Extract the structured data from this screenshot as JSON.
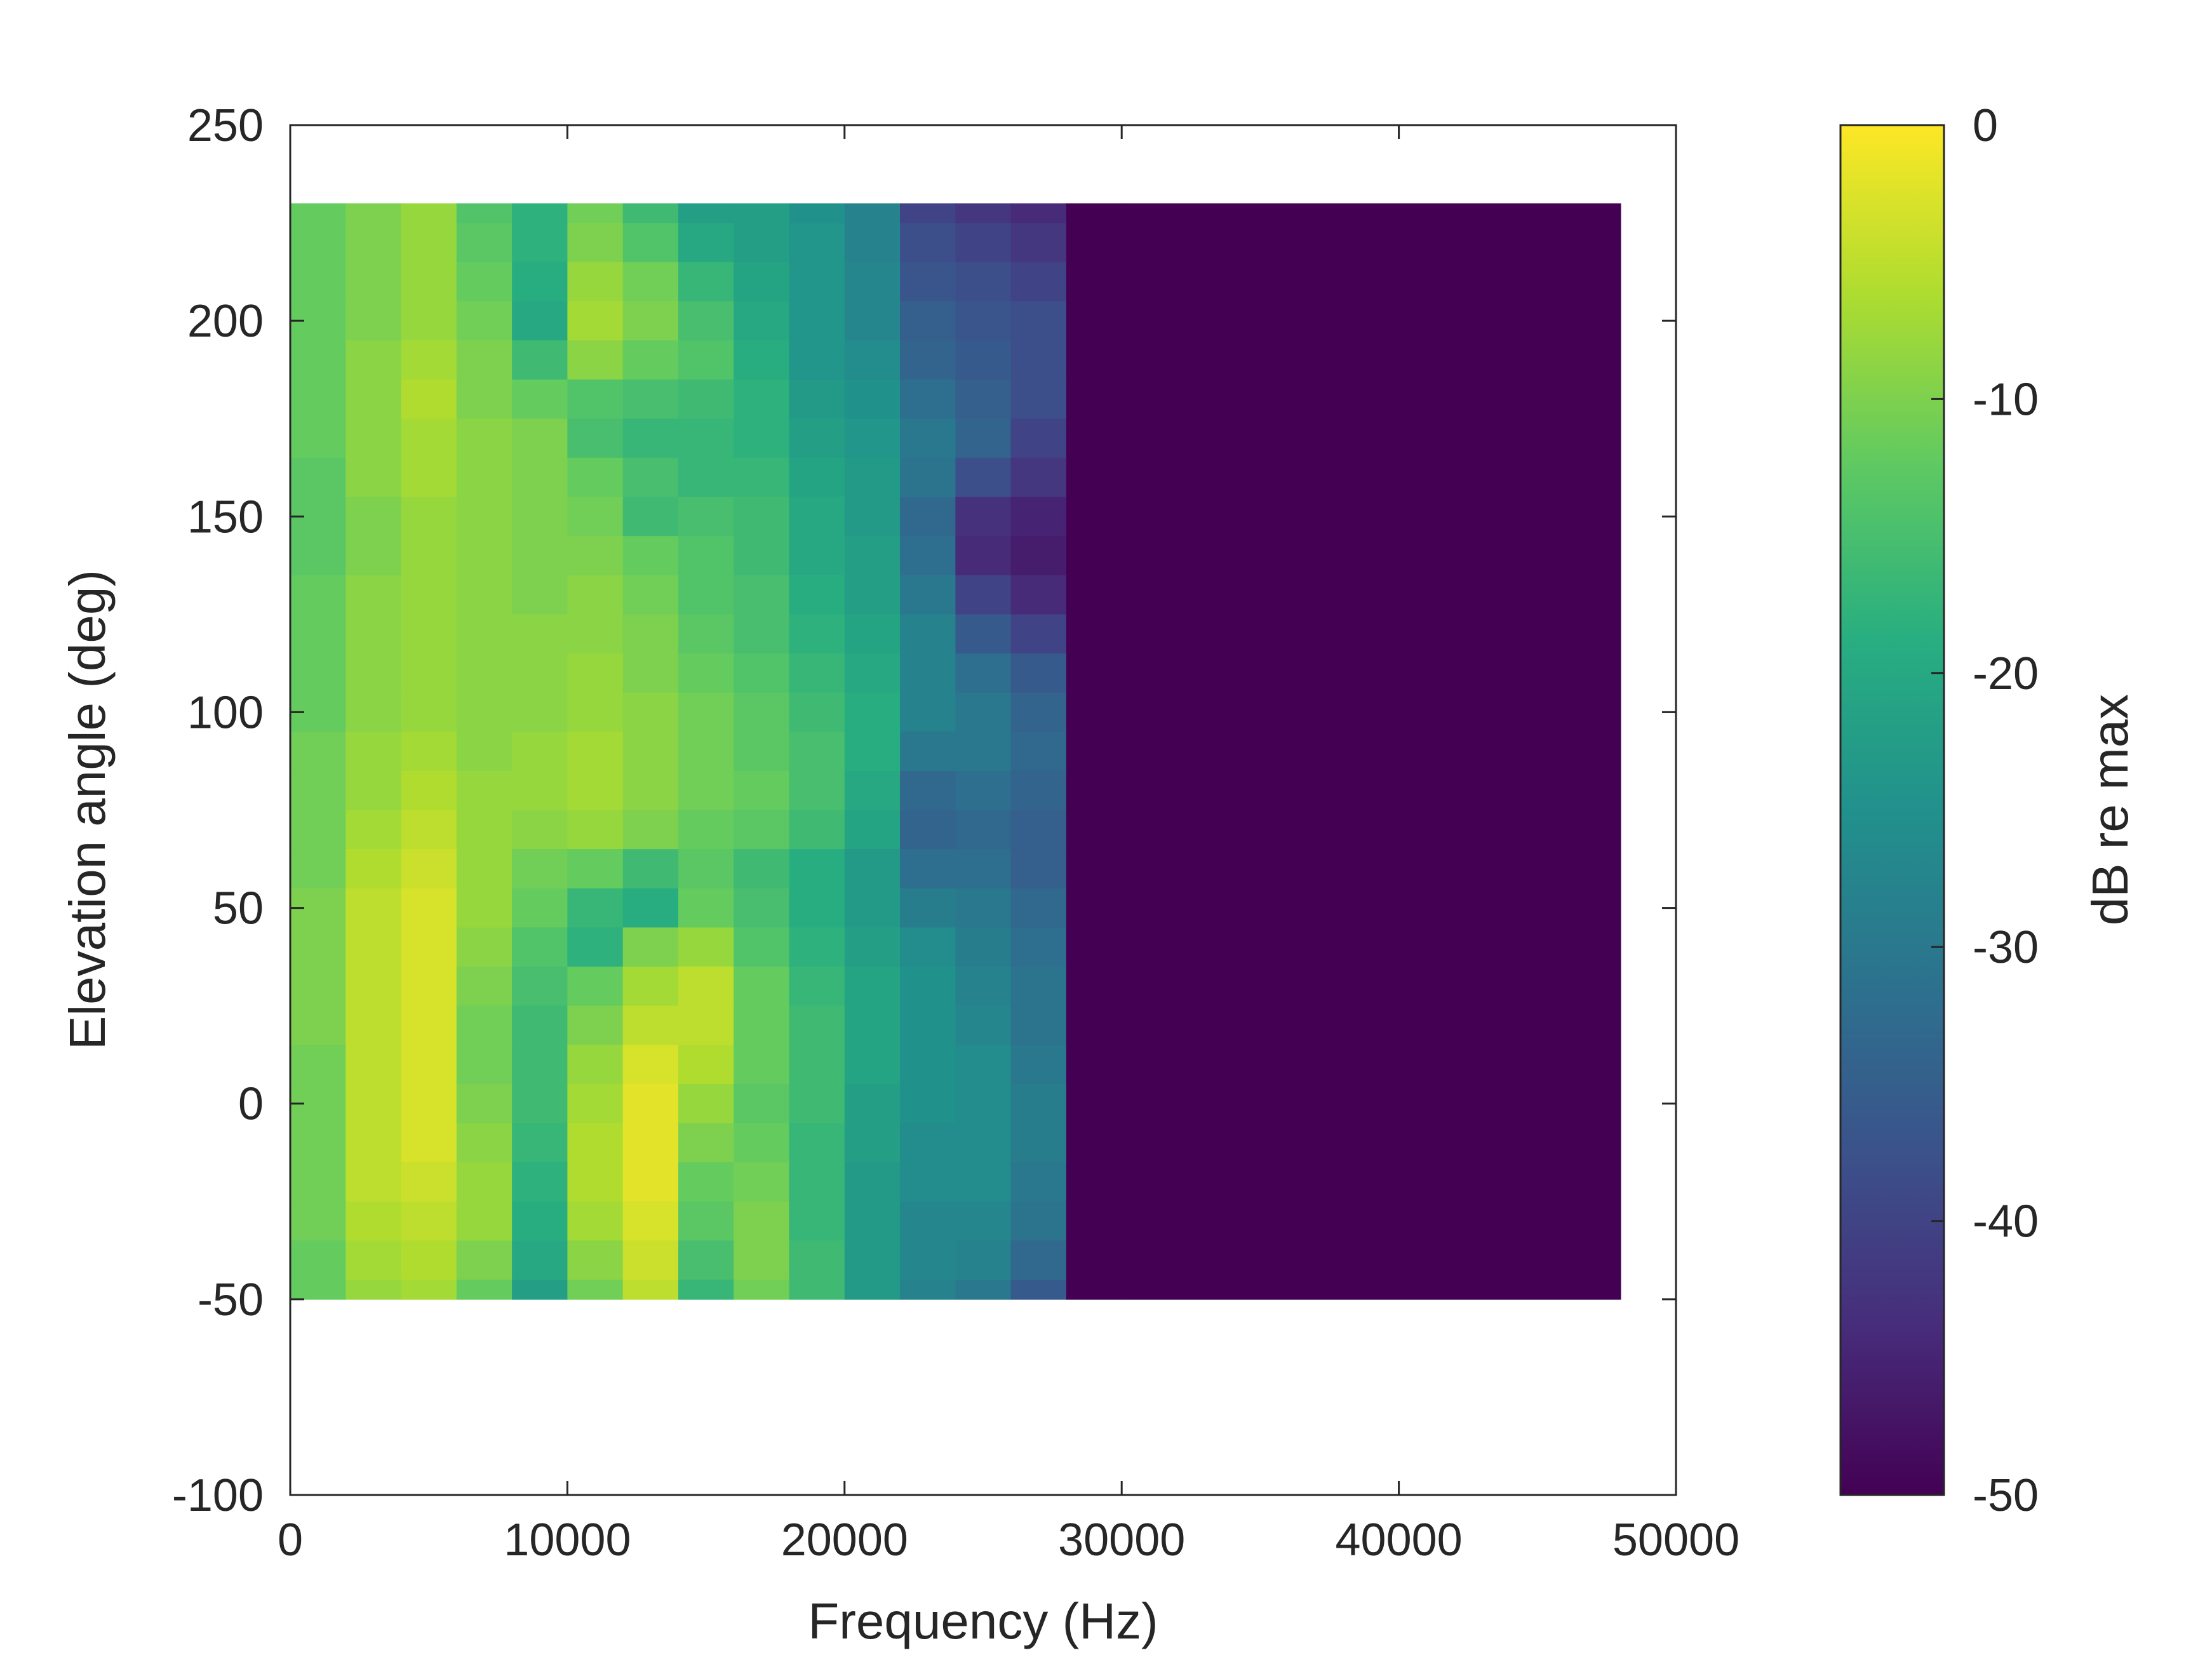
{
  "chart_data": {
    "type": "heatmap",
    "title": "",
    "xlabel": "Frequency (Hz)",
    "ylabel": "Elevation angle (deg)",
    "xlim": [
      0,
      50000
    ],
    "ylim": [
      -100,
      250
    ],
    "xticks": [
      0,
      10000,
      20000,
      30000,
      40000,
      50000
    ],
    "xtick_labels": [
      "0",
      "10000",
      "20000",
      "30000",
      "40000",
      "50000"
    ],
    "yticks": [
      -100,
      -50,
      0,
      50,
      100,
      150,
      200,
      250
    ],
    "ytick_labels": [
      "-100",
      "-50",
      "0",
      "50",
      "100",
      "150",
      "200",
      "250"
    ],
    "data_extent": {
      "freq_hz": [
        0,
        48000
      ],
      "elevation_deg": [
        -50,
        230
      ]
    },
    "grid": false,
    "colorbar": {
      "label": "dB re max",
      "colormap": "viridis",
      "range": [
        -50,
        0
      ],
      "ticks": [
        0,
        -10,
        -20,
        -30,
        -40,
        -50
      ],
      "tick_labels": [
        "0",
        "-10",
        "-20",
        "-30",
        "-40",
        "-50"
      ]
    },
    "elevations_deg": [
      230,
      220,
      210,
      200,
      190,
      180,
      170,
      160,
      150,
      140,
      130,
      120,
      110,
      100,
      90,
      80,
      70,
      60,
      50,
      40,
      30,
      20,
      10,
      0,
      -10,
      -20,
      -30,
      -40,
      -50
    ],
    "freq_bin_edges_hz": [
      0,
      2000,
      4000,
      6000,
      8000,
      10000,
      12000,
      14000,
      16000,
      18000,
      20000,
      22000,
      24000,
      26000,
      28000,
      30000,
      48000
    ],
    "values_db": [
      [
        -12,
        -10,
        -8,
        -14,
        -18,
        -11,
        -16,
        -22,
        -22,
        -25,
        -28,
        -40,
        -42,
        -44,
        -50,
        -50
      ],
      [
        -12,
        -10,
        -8,
        -13,
        -18,
        -10,
        -14,
        -20,
        -22,
        -24,
        -28,
        -38,
        -40,
        -42,
        -50,
        -50
      ],
      [
        -12,
        -10,
        -8,
        -12,
        -19,
        -8,
        -11,
        -17,
        -21,
        -24,
        -27,
        -37,
        -38,
        -40,
        -50,
        -50
      ],
      [
        -12,
        -10,
        -8,
        -11,
        -20,
        -7,
        -10,
        -15,
        -20,
        -24,
        -27,
        -35,
        -37,
        -38,
        -50,
        -50
      ],
      [
        -12,
        -9,
        -7,
        -10,
        -16,
        -9,
        -12,
        -14,
        -19,
        -24,
        -26,
        -34,
        -36,
        -38,
        -50,
        -50
      ],
      [
        -12,
        -9,
        -6,
        -10,
        -12,
        -14,
        -15,
        -16,
        -18,
        -23,
        -25,
        -32,
        -35,
        -38,
        -50,
        -50
      ],
      [
        -12,
        -9,
        -7,
        -9,
        -10,
        -15,
        -17,
        -17,
        -18,
        -22,
        -24,
        -30,
        -34,
        -40,
        -50,
        -50
      ],
      [
        -13,
        -9,
        -7,
        -9,
        -10,
        -12,
        -15,
        -17,
        -17,
        -21,
        -23,
        -31,
        -38,
        -42,
        -50,
        -50
      ],
      [
        -13,
        -10,
        -8,
        -9,
        -10,
        -11,
        -16,
        -15,
        -16,
        -20,
        -23,
        -33,
        -43,
        -45,
        -50,
        -50
      ],
      [
        -13,
        -10,
        -8,
        -9,
        -10,
        -10,
        -12,
        -14,
        -16,
        -20,
        -22,
        -32,
        -44,
        -46,
        -50,
        -50
      ],
      [
        -12,
        -9,
        -8,
        -9,
        -10,
        -9,
        -11,
        -14,
        -15,
        -19,
        -22,
        -30,
        -40,
        -44,
        -50,
        -50
      ],
      [
        -12,
        -9,
        -8,
        -9,
        -9,
        -9,
        -10,
        -13,
        -15,
        -18,
        -21,
        -28,
        -36,
        -40,
        -50,
        -50
      ],
      [
        -12,
        -9,
        -8,
        -9,
        -9,
        -8,
        -10,
        -12,
        -14,
        -17,
        -20,
        -28,
        -32,
        -36,
        -50,
        -50
      ],
      [
        -12,
        -9,
        -8,
        -9,
        -9,
        -8,
        -9,
        -11,
        -13,
        -16,
        -19,
        -28,
        -30,
        -34,
        -50,
        -50
      ],
      [
        -11,
        -8,
        -7,
        -9,
        -8,
        -7,
        -9,
        -11,
        -13,
        -15,
        -19,
        -30,
        -30,
        -33,
        -50,
        -50
      ],
      [
        -11,
        -8,
        -6,
        -8,
        -8,
        -7,
        -9,
        -11,
        -12,
        -15,
        -20,
        -33,
        -32,
        -34,
        -50,
        -50
      ],
      [
        -11,
        -7,
        -5,
        -8,
        -9,
        -8,
        -10,
        -12,
        -13,
        -16,
        -21,
        -34,
        -33,
        -35,
        -50,
        -50
      ],
      [
        -11,
        -6,
        -4,
        -8,
        -11,
        -12,
        -16,
        -13,
        -16,
        -19,
        -23,
        -32,
        -32,
        -35,
        -50,
        -50
      ],
      [
        -10,
        -5,
        -3,
        -8,
        -12,
        -17,
        -19,
        -12,
        -15,
        -19,
        -23,
        -29,
        -30,
        -33,
        -50,
        -50
      ],
      [
        -10,
        -5,
        -3,
        -9,
        -14,
        -18,
        -10,
        -8,
        -14,
        -18,
        -22,
        -26,
        -29,
        -32,
        -50,
        -50
      ],
      [
        -10,
        -5,
        -3,
        -10,
        -15,
        -12,
        -7,
        -5,
        -12,
        -17,
        -21,
        -25,
        -28,
        -31,
        -50,
        -50
      ],
      [
        -10,
        -5,
        -3,
        -11,
        -16,
        -10,
        -5,
        -5,
        -12,
        -16,
        -21,
        -25,
        -27,
        -31,
        -50,
        -50
      ],
      [
        -11,
        -5,
        -3,
        -11,
        -16,
        -8,
        -3,
        -6,
        -12,
        -16,
        -21,
        -25,
        -26,
        -30,
        -50,
        -50
      ],
      [
        -11,
        -5,
        -3,
        -10,
        -16,
        -7,
        -2,
        -8,
        -13,
        -16,
        -22,
        -25,
        -26,
        -29,
        -50,
        -50
      ],
      [
        -11,
        -5,
        -3,
        -9,
        -17,
        -6,
        -2,
        -10,
        -12,
        -17,
        -22,
        -26,
        -26,
        -29,
        -50,
        -50
      ],
      [
        -11,
        -5,
        -4,
        -8,
        -18,
        -6,
        -2,
        -12,
        -11,
        -17,
        -23,
        -26,
        -26,
        -30,
        -50,
        -50
      ],
      [
        -11,
        -6,
        -5,
        -8,
        -19,
        -7,
        -3,
        -13,
        -10,
        -17,
        -23,
        -27,
        -27,
        -31,
        -50,
        -50
      ],
      [
        -12,
        -7,
        -6,
        -10,
        -20,
        -9,
        -4,
        -15,
        -10,
        -16,
        -23,
        -27,
        -28,
        -33,
        -50,
        -50
      ],
      [
        -12,
        -8,
        -7,
        -12,
        -22,
        -11,
        -5,
        -17,
        -11,
        -16,
        -23,
        -28,
        -30,
        -36,
        -50,
        -50
      ]
    ]
  }
}
